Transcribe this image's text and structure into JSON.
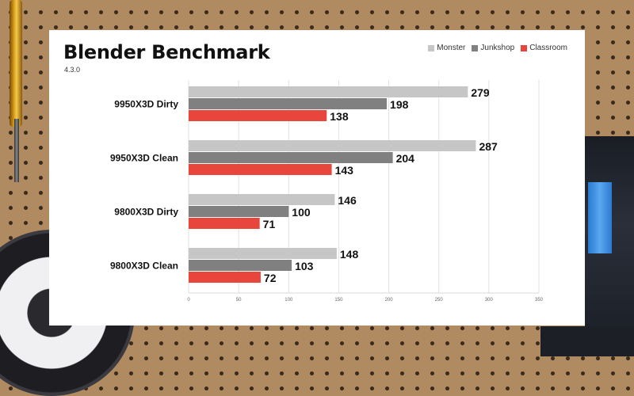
{
  "chart_data": {
    "type": "bar",
    "orientation": "horizontal",
    "title": "Blender Benchmark",
    "subtitle": "4.3.0",
    "categories": [
      "9950X3D Dirty",
      "9950X3D Clean",
      "9800X3D Dirty",
      "9800X3D Clean"
    ],
    "series": [
      {
        "name": "Monster",
        "color": "#c6c6c6",
        "values": [
          279,
          287,
          146,
          148
        ]
      },
      {
        "name": "Junkshop",
        "color": "#808080",
        "values": [
          198,
          204,
          100,
          103
        ]
      },
      {
        "name": "Classroom",
        "color": "#e8463c",
        "values": [
          138,
          143,
          71,
          72
        ]
      }
    ],
    "xlim": [
      0,
      350
    ],
    "xticks": [
      0,
      50,
      100,
      150,
      200,
      250,
      300,
      350
    ],
    "grid": true,
    "legend_position": "top-right"
  }
}
